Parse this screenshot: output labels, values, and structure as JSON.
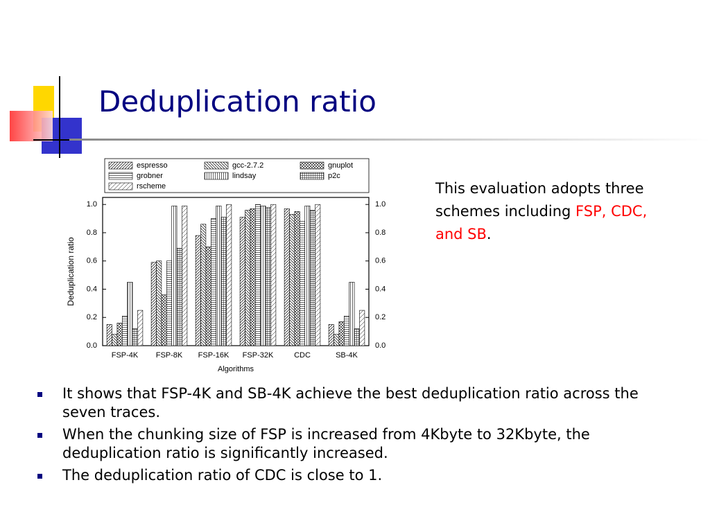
{
  "slide": {
    "title": "Deduplication ratio",
    "side_text": {
      "lead": "This evaluation adopts three schemes including",
      "highlight": "FSP, CDC, and SB",
      "tail": "."
    },
    "bullets": [
      "It shows that FSP-4K and SB-4K achieve the best deduplication ratio across the seven traces.",
      "When the chunking size of FSP is increased from 4Kbyte to 32Kbyte, the deduplication ratio is significantly increased.",
      "The deduplication ratio of CDC is close to 1."
    ]
  },
  "chart_data": {
    "type": "bar",
    "x_label": "Algorithms",
    "y_label": "Deduplication ratio",
    "categories": [
      "FSP-4K",
      "FSP-8K",
      "FSP-16K",
      "FSP-32K",
      "CDC",
      "SB-4K"
    ],
    "series": [
      {
        "name": "espresso",
        "values": [
          0.15,
          0.59,
          0.78,
          0.91,
          0.97,
          0.15
        ]
      },
      {
        "name": "gcc-2.7.2",
        "values": [
          0.08,
          0.6,
          0.86,
          0.96,
          0.93,
          0.08
        ]
      },
      {
        "name": "gnuplot",
        "values": [
          0.16,
          0.36,
          0.7,
          0.97,
          0.95,
          0.17
        ]
      },
      {
        "name": "grobner",
        "values": [
          0.21,
          0.6,
          0.9,
          1.0,
          0.88,
          0.21
        ]
      },
      {
        "name": "lindsay",
        "values": [
          0.45,
          0.99,
          0.99,
          0.99,
          0.99,
          0.45
        ]
      },
      {
        "name": "p2c",
        "values": [
          0.12,
          0.69,
          0.91,
          0.98,
          0.96,
          0.12
        ]
      },
      {
        "name": "rscheme",
        "values": [
          0.25,
          0.99,
          1.0,
          1.0,
          1.0,
          0.25
        ]
      }
    ],
    "ylim": [
      0,
      1.05
    ],
    "yticks": [
      {
        "value": 0,
        "label": "0.0"
      },
      0.2,
      0.4,
      0.6,
      0.8,
      {
        "value": 1,
        "label": "1.0"
      }
    ],
    "y2lim": [
      0,
      1.05
    ],
    "y2ticks": [
      {
        "value": 0,
        "label": "0.0"
      },
      0.2,
      0.4,
      0.6,
      0.8,
      {
        "value": 1,
        "label": "1.0"
      }
    ]
  }
}
